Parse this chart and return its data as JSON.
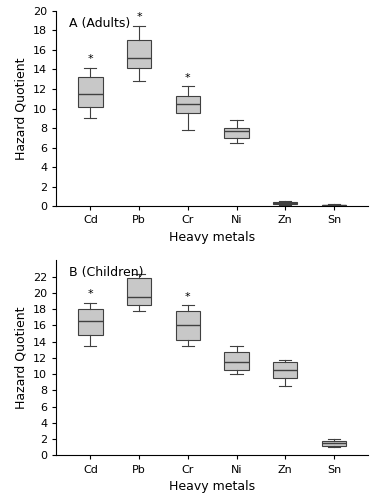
{
  "categories": [
    "Cd",
    "Pb",
    "Cr",
    "Ni",
    "Zn",
    "Sn"
  ],
  "panel_a": {
    "title": "A (Adults)",
    "ylabel": "Hazard Quotient",
    "xlabel": "Heavy metals",
    "ylim": [
      0,
      20
    ],
    "yticks": [
      0,
      2,
      4,
      6,
      8,
      10,
      12,
      14,
      16,
      18,
      20
    ],
    "boxes": [
      {
        "q1": 10.2,
        "median": 11.5,
        "q3": 13.2,
        "whislo": 9.0,
        "whishi": 14.2,
        "star": true
      },
      {
        "q1": 14.2,
        "median": 15.2,
        "q3": 17.0,
        "whislo": 12.8,
        "whishi": 18.5,
        "star": true
      },
      {
        "q1": 9.5,
        "median": 10.5,
        "q3": 11.3,
        "whislo": 7.8,
        "whishi": 12.3,
        "star": true
      },
      {
        "q1": 7.0,
        "median": 7.7,
        "q3": 8.0,
        "whislo": 6.5,
        "whishi": 8.8,
        "star": false
      },
      {
        "q1": 0.25,
        "median": 0.35,
        "q3": 0.45,
        "whislo": 0.15,
        "whishi": 0.55,
        "star": false
      },
      {
        "q1": 0.03,
        "median": 0.07,
        "q3": 0.12,
        "whislo": 0.01,
        "whishi": 0.2,
        "star": false
      }
    ]
  },
  "panel_b": {
    "title": "B (Children)",
    "ylabel": "Hazard Quotient",
    "xlabel": "Heavy metals",
    "ylim": [
      0,
      24
    ],
    "yticks": [
      0,
      2,
      4,
      6,
      8,
      10,
      12,
      14,
      16,
      18,
      20,
      22
    ],
    "boxes": [
      {
        "q1": 14.8,
        "median": 16.5,
        "q3": 18.0,
        "whislo": 13.5,
        "whishi": 18.8,
        "star": true
      },
      {
        "q1": 18.5,
        "median": 19.5,
        "q3": 21.8,
        "whislo": 17.8,
        "whishi": 22.3,
        "star": false
      },
      {
        "q1": 14.2,
        "median": 16.0,
        "q3": 17.8,
        "whislo": 13.5,
        "whishi": 18.5,
        "star": true
      },
      {
        "q1": 10.5,
        "median": 11.5,
        "q3": 12.7,
        "whislo": 10.0,
        "whishi": 13.5,
        "star": false
      },
      {
        "q1": 9.5,
        "median": 10.5,
        "q3": 11.5,
        "whislo": 8.5,
        "whishi": 11.8,
        "star": false
      },
      {
        "q1": 1.2,
        "median": 1.5,
        "q3": 1.8,
        "whislo": 1.0,
        "whishi": 2.0,
        "star": false
      }
    ]
  },
  "box_facecolor": "#c8c8c8",
  "box_edgecolor": "#404040",
  "whisker_color": "#404040",
  "median_color": "#404040",
  "cap_color": "#404040",
  "star_color": "black",
  "figsize": [
    3.75,
    5.0
  ],
  "dpi": 100
}
